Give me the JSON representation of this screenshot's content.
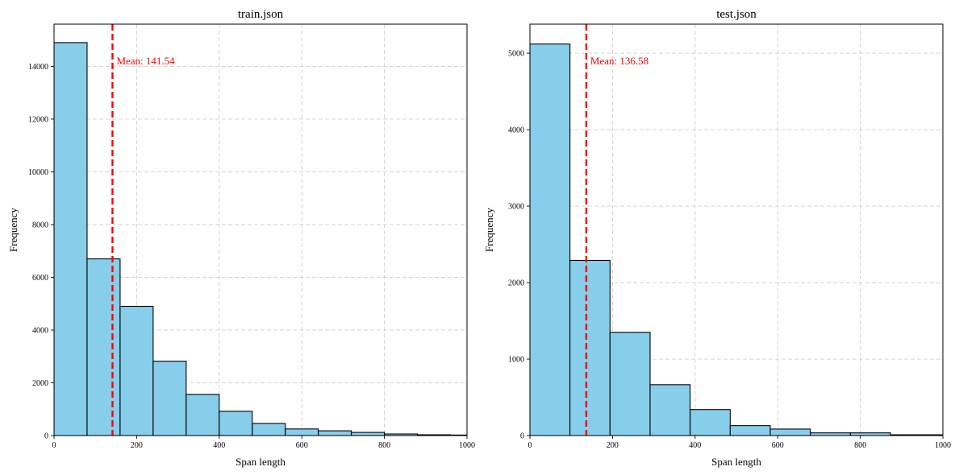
{
  "chart_data": [
    {
      "type": "bar",
      "subtype": "histogram",
      "title": "train.json",
      "xlabel": "Span length",
      "ylabel": "Frequency",
      "xlim": [
        0,
        1000
      ],
      "ylim": [
        0,
        15600
      ],
      "xticks": [
        0,
        200,
        400,
        600,
        800,
        1000
      ],
      "yticks": [
        0,
        2000,
        4000,
        6000,
        8000,
        10000,
        12000,
        14000
      ],
      "grid": true,
      "bin_edges": [
        0,
        80,
        160,
        240,
        320,
        400,
        480,
        560,
        640,
        720,
        800,
        880,
        960,
        1040
      ],
      "values": [
        14900,
        6700,
        4900,
        2820,
        1560,
        920,
        460,
        250,
        180,
        120,
        60,
        30,
        20
      ],
      "bar_color": "#87CEEB",
      "edge_color": "#000000",
      "mean": {
        "value": 141.54,
        "label": "Mean: 141.54",
        "color": "#FF0000"
      }
    },
    {
      "type": "bar",
      "subtype": "histogram",
      "title": "test.json",
      "xlabel": "Span length",
      "ylabel": "Frequency",
      "xlim": [
        0,
        1000
      ],
      "ylim": [
        0,
        5380
      ],
      "xticks": [
        0,
        200,
        400,
        600,
        800,
        1000
      ],
      "yticks": [
        0,
        1000,
        2000,
        3000,
        4000,
        5000
      ],
      "grid": true,
      "bin_edges": [
        0,
        97,
        194,
        291,
        388,
        485,
        582,
        679,
        776,
        873,
        970,
        1067
      ],
      "values": [
        5120,
        2290,
        1350,
        665,
        340,
        130,
        85,
        35,
        35,
        10,
        10
      ],
      "bar_color": "#87CEEB",
      "edge_color": "#000000",
      "mean": {
        "value": 136.58,
        "label": "Mean: 136.58",
        "color": "#FF0000"
      }
    }
  ]
}
